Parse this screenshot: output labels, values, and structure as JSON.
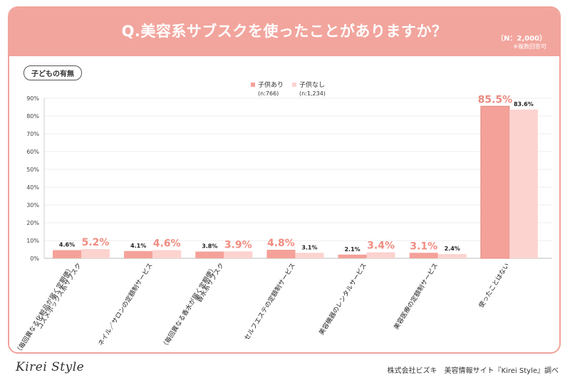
{
  "header": {
    "title": "Q.美容系サブスクを使ったことがありますか？",
    "n_label": "（N：2,000）",
    "note": "※複数回答可"
  },
  "tag": "子どもの有無",
  "footer": {
    "logo": "Kirei Style",
    "credit": "株式会社ビズキ　美容情報サイト『Kirei Style』調べ"
  },
  "colors": {
    "header": "#f2a59d",
    "series1": "#f4a199",
    "series2": "#fcd3cf",
    "axis": "#999999"
  },
  "chart_data": {
    "type": "bar",
    "ylim": [
      0,
      90
    ],
    "yticks": [
      "0%",
      "10%",
      "20%",
      "30%",
      "40%",
      "50%",
      "60%",
      "70%",
      "80%",
      "90%"
    ],
    "categories": [
      [
        "コスメボックス系サブスク",
        "（毎回異なる化粧品が届く定期便）"
      ],
      [
        "ネイル／サロンの定額制サービス"
      ],
      [
        "香水系サブスク",
        "（毎回異なる香水が届く定期便）"
      ],
      [
        "セルフエステの定額制サービス"
      ],
      [
        "美容機器のレンタルサービス"
      ],
      [
        "美容医療の定額制サービス"
      ],
      [
        "使ったことはない"
      ]
    ],
    "series": [
      {
        "name": "子供あり",
        "n": "(n:766)",
        "values": [
          4.6,
          4.1,
          3.8,
          4.8,
          2.1,
          3.1,
          85.5
        ],
        "labels": [
          "4.6%",
          "4.1%",
          "3.8%",
          "4.8%",
          "2.1%",
          "3.1%",
          "85.5%"
        ]
      },
      {
        "name": "子供なし",
        "n": "(n:1,234)",
        "values": [
          5.2,
          4.6,
          3.9,
          3.1,
          3.4,
          2.4,
          83.6
        ],
        "labels": [
          "5.2%",
          "4.6%",
          "3.9%",
          "3.1%",
          "3.4%",
          "2.4%",
          "83.6%"
        ]
      }
    ],
    "highlight": [
      [
        false,
        true
      ],
      [
        false,
        true
      ],
      [
        false,
        true
      ],
      [
        true,
        false
      ],
      [
        false,
        true
      ],
      [
        true,
        false
      ],
      [
        true,
        false
      ]
    ]
  }
}
